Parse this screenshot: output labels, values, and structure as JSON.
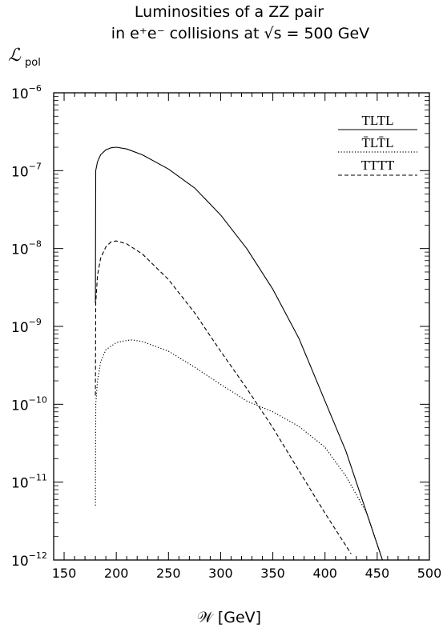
{
  "chart_data": {
    "type": "line",
    "title_line1": "Luminosities of a ZZ pair",
    "title_line2": "in e⁺e⁻ collisions  at √s = 500 GeV",
    "ylabel": "ℒ",
    "ylabel_sub": "pol",
    "xlabel": "𝒲 [GeV]",
    "xlim": [
      140,
      500
    ],
    "ylim_log10": [
      -12,
      -6
    ],
    "y_scale": "log",
    "grid": false,
    "legend_position": "top-right",
    "x_ticks": [
      150,
      200,
      250,
      300,
      350,
      400,
      450,
      500
    ],
    "y_tick_exponents": [
      -12,
      -11,
      -10,
      -9,
      -8,
      -7,
      -6
    ],
    "y_tick_base": "10",
    "series": [
      {
        "name": "TLTL",
        "style": "solid",
        "color": "#000000",
        "points": [
          [
            180,
            2e-09
          ],
          [
            180.3,
            1e-07
          ],
          [
            182,
            1.3e-07
          ],
          [
            185,
            1.6e-07
          ],
          [
            190,
            1.85e-07
          ],
          [
            195,
            1.97e-07
          ],
          [
            200,
            2e-07
          ],
          [
            210,
            1.9e-07
          ],
          [
            225,
            1.6e-07
          ],
          [
            250,
            1.05e-07
          ],
          [
            275,
            6e-08
          ],
          [
            300,
            2.7e-08
          ],
          [
            325,
            1e-08
          ],
          [
            350,
            3e-09
          ],
          [
            375,
            7e-10
          ],
          [
            400,
            1.1e-10
          ],
          [
            420,
            2.5e-11
          ],
          [
            440,
            4e-12
          ],
          [
            455,
            1e-12
          ],
          [
            470,
            1e-12
          ],
          [
            480,
            1e-12
          ]
        ]
      },
      {
        "name": "T̄LT̄L",
        "style": "dotted",
        "color": "#000000",
        "points": [
          [
            180,
            5e-12
          ],
          [
            180.3,
            1e-10
          ],
          [
            182,
            2e-10
          ],
          [
            185,
            3.5e-10
          ],
          [
            190,
            5e-10
          ],
          [
            200,
            6.2e-10
          ],
          [
            210,
            6.6e-10
          ],
          [
            215,
            6.7e-10
          ],
          [
            225,
            6.4e-10
          ],
          [
            250,
            4.8e-10
          ],
          [
            275,
            3e-10
          ],
          [
            300,
            1.8e-10
          ],
          [
            325,
            1.1e-10
          ],
          [
            350,
            8e-11
          ],
          [
            375,
            5.2e-11
          ],
          [
            400,
            2.8e-11
          ],
          [
            420,
            1.2e-11
          ],
          [
            440,
            4e-12
          ],
          [
            455,
            1e-12
          ]
        ]
      },
      {
        "name": "TTTT",
        "style": "dashed",
        "color": "#000000",
        "points": [
          [
            180,
            1.3e-10
          ],
          [
            180.3,
            2e-09
          ],
          [
            182,
            4.5e-09
          ],
          [
            185,
            7.5e-09
          ],
          [
            190,
            1.05e-08
          ],
          [
            195,
            1.22e-08
          ],
          [
            200,
            1.25e-08
          ],
          [
            210,
            1.15e-08
          ],
          [
            225,
            8.5e-09
          ],
          [
            250,
            4e-09
          ],
          [
            275,
            1.5e-09
          ],
          [
            300,
            4.8e-10
          ],
          [
            325,
            1.6e-10
          ],
          [
            350,
            5e-11
          ],
          [
            375,
            1.4e-11
          ],
          [
            400,
            4e-12
          ],
          [
            425,
            1.2e-12
          ]
        ]
      }
    ]
  }
}
